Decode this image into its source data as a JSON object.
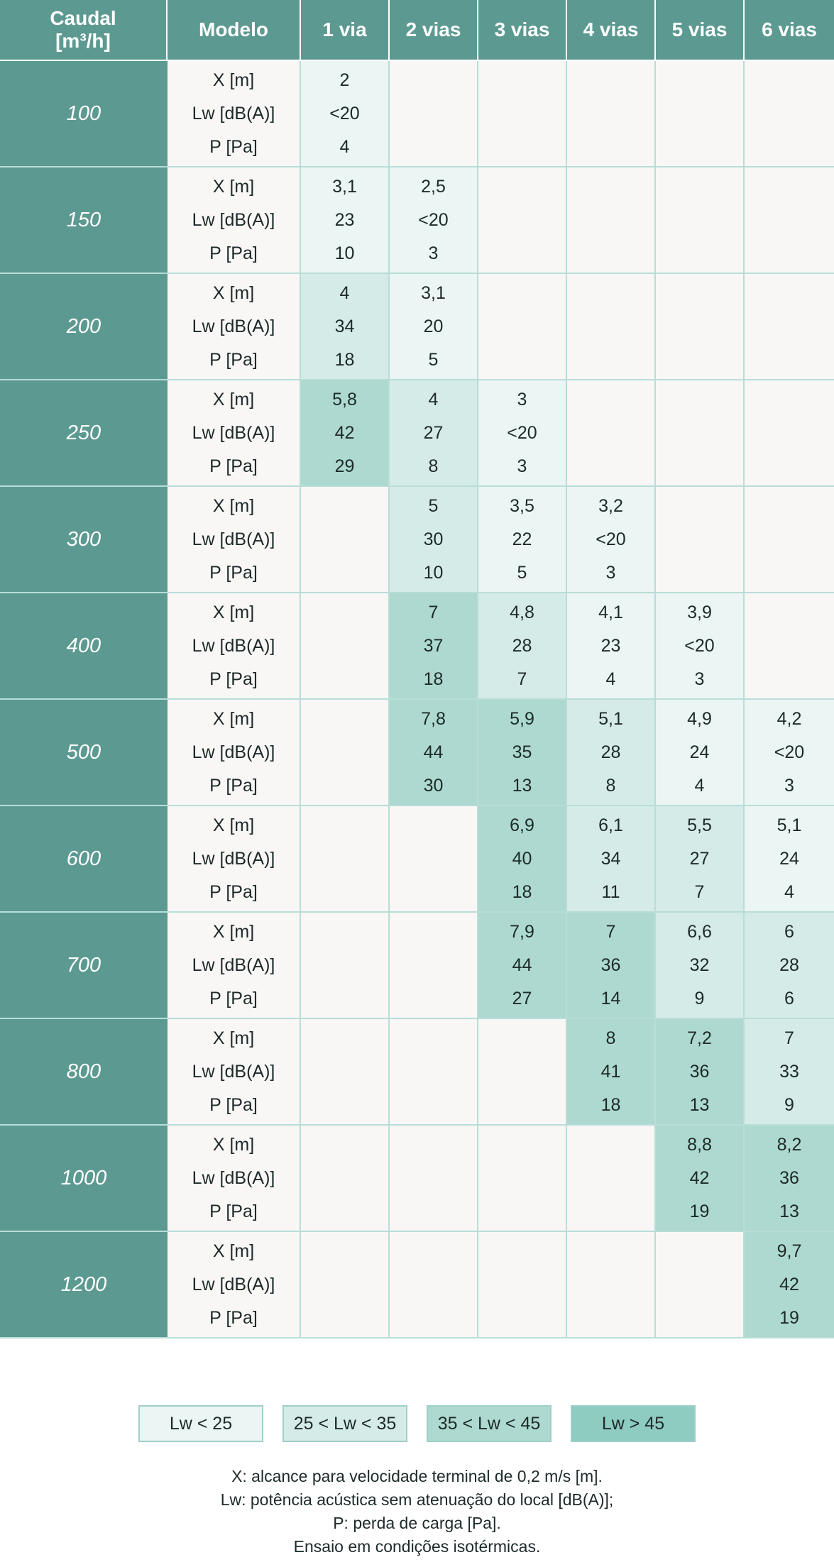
{
  "header": {
    "caudal_line1": "Caudal",
    "caudal_line2": "[m³/h]",
    "modelo": "Modelo",
    "columns": [
      "1 via",
      "2 vias",
      "3 vias",
      "4 vias",
      "5 vias",
      "6 vias"
    ]
  },
  "row_labels": [
    "X [m]",
    "Lw [dB(A)]",
    "P [Pa]"
  ],
  "rows": [
    {
      "flow": "100",
      "cells": [
        [
          "2",
          "<20",
          "4"
        ],
        null,
        null,
        null,
        null,
        null
      ]
    },
    {
      "flow": "150",
      "cells": [
        [
          "3,1",
          "23",
          "10"
        ],
        [
          "2,5",
          "<20",
          "3"
        ],
        null,
        null,
        null,
        null
      ]
    },
    {
      "flow": "200",
      "cells": [
        [
          "4",
          "34",
          "18"
        ],
        [
          "3,1",
          "20",
          "5"
        ],
        null,
        null,
        null,
        null
      ]
    },
    {
      "flow": "250",
      "cells": [
        [
          "5,8",
          "42",
          "29"
        ],
        [
          "4",
          "27",
          "8"
        ],
        [
          "3",
          "<20",
          "3"
        ],
        null,
        null,
        null
      ]
    },
    {
      "flow": "300",
      "cells": [
        null,
        [
          "5",
          "30",
          "10"
        ],
        [
          "3,5",
          "22",
          "5"
        ],
        [
          "3,2",
          "<20",
          "3"
        ],
        null,
        null
      ]
    },
    {
      "flow": "400",
      "cells": [
        null,
        [
          "7",
          "37",
          "18"
        ],
        [
          "4,8",
          "28",
          "7"
        ],
        [
          "4,1",
          "23",
          "4"
        ],
        [
          "3,9",
          "<20",
          "3"
        ],
        null
      ]
    },
    {
      "flow": "500",
      "cells": [
        null,
        [
          "7,8",
          "44",
          "30"
        ],
        [
          "5,9",
          "35",
          "13"
        ],
        [
          "5,1",
          "28",
          "8"
        ],
        [
          "4,9",
          "24",
          "4"
        ],
        [
          "4,2",
          "<20",
          "3"
        ]
      ]
    },
    {
      "flow": "600",
      "cells": [
        null,
        null,
        [
          "6,9",
          "40",
          "18"
        ],
        [
          "6,1",
          "34",
          "11"
        ],
        [
          "5,5",
          "27",
          "7"
        ],
        [
          "5,1",
          "24",
          "4"
        ]
      ]
    },
    {
      "flow": "700",
      "cells": [
        null,
        null,
        [
          "7,9",
          "44",
          "27"
        ],
        [
          "7",
          "36",
          "14"
        ],
        [
          "6,6",
          "32",
          "9"
        ],
        [
          "6",
          "28",
          "6"
        ]
      ]
    },
    {
      "flow": "800",
      "cells": [
        null,
        null,
        null,
        [
          "8",
          "41",
          "18"
        ],
        [
          "7,2",
          "36",
          "13"
        ],
        [
          "7",
          "33",
          "9"
        ]
      ]
    },
    {
      "flow": "1000",
      "cells": [
        null,
        null,
        null,
        null,
        [
          "8,8",
          "42",
          "19"
        ],
        [
          "8,2",
          "36",
          "13"
        ]
      ]
    },
    {
      "flow": "1200",
      "cells": [
        null,
        null,
        null,
        null,
        null,
        [
          "9,7",
          "42",
          "19"
        ]
      ]
    }
  ],
  "legend": [
    "Lw < 25",
    "25 < Lw < 35",
    "35 < Lw < 45",
    "Lw > 45"
  ],
  "colors": {
    "header": "#5c9a91",
    "empty": "#f8f7f5",
    "lw_lt_25": "#ebf5f3",
    "lw_25_35": "#d5ebe7",
    "lw_35_45": "#add9d0",
    "lw_gt_45": "#8ecbc0",
    "grid": "#b9ddd8"
  },
  "notes": [
    "X: alcance para velocidade terminal de 0,2 m/s [m].",
    "Lw: potência acústica sem atenuação do local [dB(A)];",
    "P: perda de carga [Pa].",
    "Ensaio em condições isotérmicas."
  ]
}
